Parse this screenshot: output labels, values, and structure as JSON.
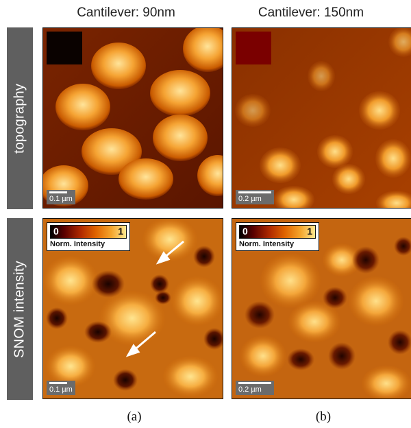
{
  "columns": [
    "Cantilever: 90nm",
    "Cantilever: 150nm"
  ],
  "rows": [
    "topography",
    "SNOM intensity"
  ],
  "colorbar": {
    "min": "0",
    "max": "1",
    "label": "Norm. Intensity"
  },
  "scale_bars": {
    "a": "0.1 µm",
    "b": "0.2 µm"
  },
  "captions": [
    "(a)",
    "(b)"
  ],
  "colors": {
    "bg_dark": "#6e2000",
    "hot_light": "#ffe080",
    "side_label_bg": "#5f5f5f",
    "swatch_a": "#0a0200",
    "swatch_b": "#7a0000"
  }
}
